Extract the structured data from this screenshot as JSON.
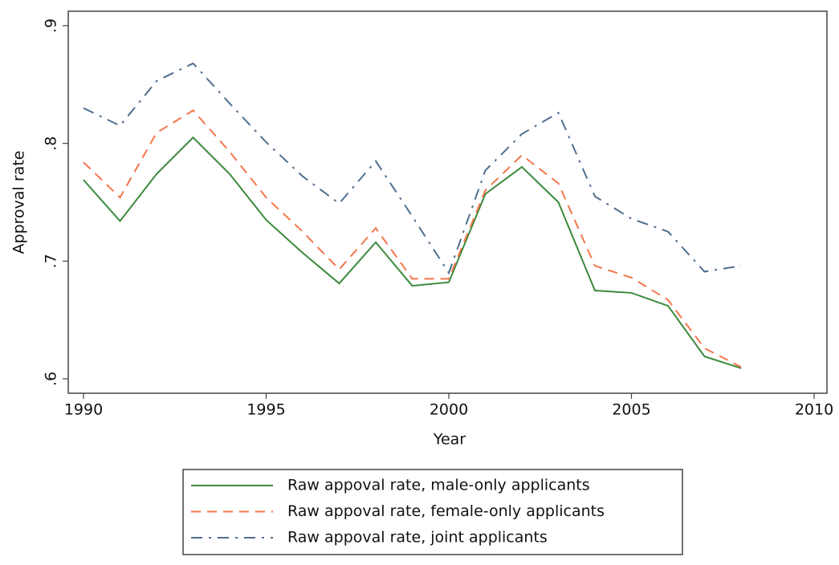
{
  "chart_data": {
    "type": "line",
    "x_label": "Year",
    "y_label": "Approval rate",
    "x": [
      1990,
      1991,
      1992,
      1993,
      1994,
      1995,
      1996,
      1997,
      1998,
      1999,
      2000,
      2001,
      2002,
      2003,
      2004,
      2005,
      2006,
      2007,
      2008
    ],
    "xlim": [
      1990,
      2010
    ],
    "xticks": [
      1990,
      1995,
      2000,
      2005,
      2010
    ],
    "ylim": [
      0.6,
      0.9
    ],
    "yticks": [
      {
        "value": 0.6,
        "label": ".6"
      },
      {
        "value": 0.7,
        "label": ".7"
      },
      {
        "value": 0.8,
        "label": ".8"
      },
      {
        "value": 0.9,
        "label": ".9"
      }
    ],
    "series": [
      {
        "name": "Raw appoval rate, male-only applicants",
        "color": "#3b8a3b",
        "style": "solid",
        "values": [
          0.769,
          0.734,
          0.774,
          0.805,
          0.774,
          0.735,
          0.707,
          0.681,
          0.716,
          0.679,
          0.682,
          0.757,
          0.78,
          0.75,
          0.675,
          0.673,
          0.662,
          0.619,
          0.609
        ]
      },
      {
        "name": "Raw appoval rate, female-only applicants",
        "color": "#f4764c",
        "style": "dashed",
        "values": [
          0.784,
          0.754,
          0.809,
          0.828,
          0.793,
          0.754,
          0.725,
          0.693,
          0.728,
          0.685,
          0.685,
          0.76,
          0.79,
          0.766,
          0.696,
          0.686,
          0.667,
          0.626,
          0.61
        ]
      },
      {
        "name": "Raw appoval rate, joint applicants",
        "color": "#506e8e",
        "style": "dashdot",
        "values": [
          0.83,
          0.815,
          0.853,
          0.868,
          0.834,
          0.801,
          0.772,
          0.749,
          0.785,
          0.738,
          0.69,
          0.777,
          0.808,
          0.826,
          0.755,
          0.736,
          0.725,
          0.691,
          0.696
        ]
      }
    ]
  }
}
